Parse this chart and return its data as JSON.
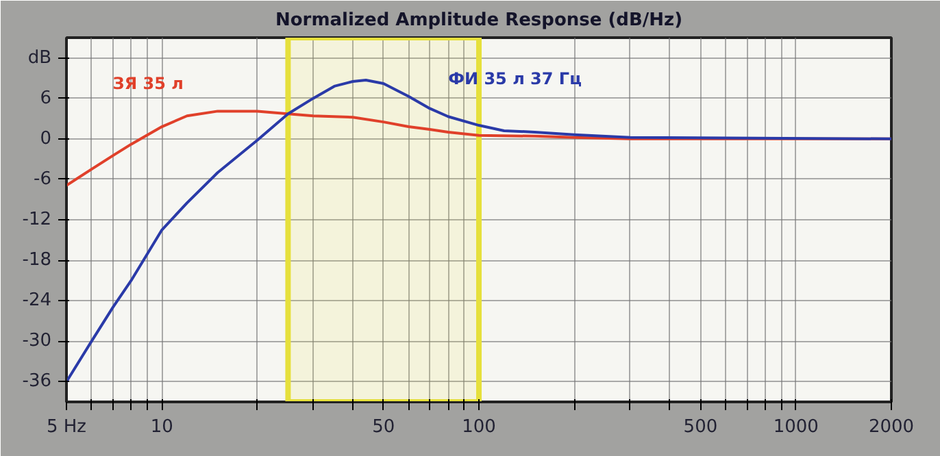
{
  "chart_data": {
    "type": "line",
    "title": "Normalized Amplitude Response (dB/Hz)",
    "log": "x",
    "grid": true,
    "marker": "none",
    "line_style": "solid",
    "xlim": [
      5,
      2000
    ],
    "ylim": [
      -39,
      15
    ],
    "xticks": [
      {
        "value": 5,
        "label": "5 Hz"
      },
      {
        "value": 6,
        "label": null
      },
      {
        "value": 7,
        "label": null
      },
      {
        "value": 8,
        "label": null
      },
      {
        "value": 9,
        "label": null
      },
      10,
      {
        "value": 20,
        "label": null
      },
      {
        "value": 30,
        "label": null
      },
      {
        "value": 40,
        "label": null
      },
      50,
      {
        "value": 60,
        "label": null
      },
      {
        "value": 70,
        "label": null
      },
      {
        "value": 80,
        "label": null
      },
      {
        "value": 90,
        "label": null
      },
      100,
      {
        "value": 200,
        "label": null
      },
      {
        "value": 300,
        "label": null
      },
      {
        "value": 400,
        "label": null
      },
      500,
      {
        "value": 600,
        "label": null
      },
      {
        "value": 700,
        "label": null
      },
      {
        "value": 800,
        "label": null
      },
      {
        "value": 900,
        "label": null
      },
      1000,
      2000
    ],
    "yticks": [
      {
        "value": 12,
        "label": "dB"
      },
      6,
      0,
      -6,
      -12,
      -18,
      -24,
      -30,
      -36
    ],
    "bands": [
      {
        "axis": "x",
        "from": 25,
        "to": 100,
        "color": "#e6e03c"
      }
    ],
    "series": [
      {
        "name": "ЗЯ 35 л",
        "color": "#e0402a",
        "x": [
          5,
          6,
          7,
          8,
          10,
          12,
          15,
          20,
          25,
          30,
          40,
          50,
          60,
          70,
          80,
          100,
          150,
          200,
          300,
          2000
        ],
        "values": [
          -6.9,
          -4.5,
          -2.5,
          -0.8,
          1.8,
          3.4,
          4.1,
          4.1,
          3.7,
          3.4,
          3.2,
          2.5,
          1.8,
          1.4,
          1,
          0.5,
          0.4,
          0.2,
          0,
          0
        ]
      },
      {
        "name": "ФИ 35 л 37 Гц",
        "color": "#2a3aa8",
        "x": [
          5,
          6,
          7,
          8,
          10,
          12,
          15,
          20,
          25,
          30,
          35,
          40,
          44,
          50,
          60,
          70,
          80,
          100,
          120,
          150,
          200,
          300,
          2000
        ],
        "values": [
          -36,
          -30,
          -25,
          -21,
          -13.5,
          -9.5,
          -5,
          -0.2,
          3.7,
          6,
          7.8,
          8.5,
          8.7,
          8.2,
          6.3,
          4.5,
          3.3,
          2,
          1.2,
          1,
          0.6,
          0.2,
          0
        ]
      }
    ]
  }
}
